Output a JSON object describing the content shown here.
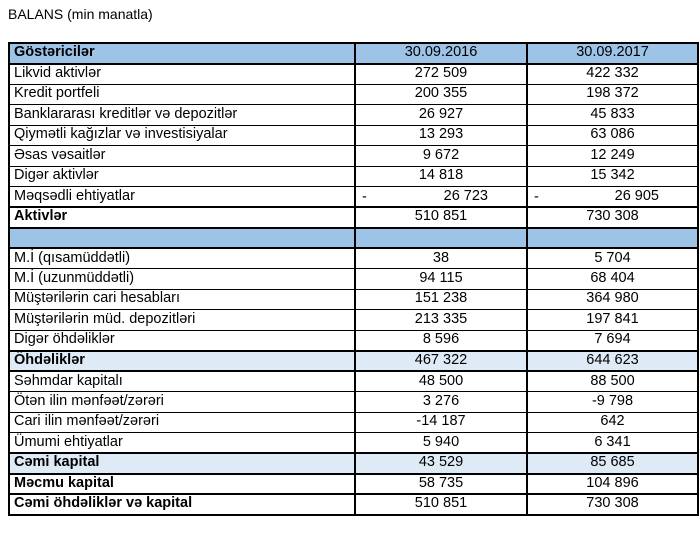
{
  "title": "BALANS (min manatla)",
  "colors": {
    "header_bg": "#9DC3E6",
    "highlight_bg": "#DEEAF6",
    "border": "#000000",
    "text": "#000000",
    "page_bg": "#FFFFFF"
  },
  "table": {
    "columns": [
      "Göstəricilər",
      "30.09.2016",
      "30.09.2017"
    ],
    "rows": [
      {
        "label": "Likvid aktivlər",
        "v2016": "272 509",
        "v2017": "422 332",
        "style": "normal"
      },
      {
        "label": "Kredit portfeli",
        "v2016": "200 355",
        "v2017": "198 372",
        "style": "normal"
      },
      {
        "label": "Banklararası kreditlər və depozitlər",
        "v2016": "26 927",
        "v2017": "45 833",
        "style": "normal"
      },
      {
        "label": "Qiymətli kağızlar və investisiyalar",
        "v2016": "13 293",
        "v2017": "63 086",
        "style": "normal"
      },
      {
        "label": "Əsas vəsaitlər",
        "v2016": "9 672",
        "v2017": "12 249",
        "style": "normal"
      },
      {
        "label": "Digər aktivlər",
        "v2016": "14 818",
        "v2017": "15 342",
        "style": "normal"
      },
      {
        "label": "Məqsədli ehtiyatlar",
        "v2016": "26 723",
        "v2017": "26 905",
        "style": "normal",
        "accounting_negative": true,
        "neg_sign": "-"
      },
      {
        "label": "Aktivlər",
        "v2016": "510 851",
        "v2017": "730 308",
        "style": "total"
      },
      {
        "label": "",
        "v2016": "",
        "v2017": "",
        "style": "spacer"
      },
      {
        "label": "M.İ (qısamüddətli)",
        "v2016": "38",
        "v2017": "5 704",
        "style": "normal"
      },
      {
        "label": "M.İ (uzunmüddətli)",
        "v2016": "94 115",
        "v2017": "68 404",
        "style": "normal"
      },
      {
        "label": "Müştərilərin cari hesabları",
        "v2016": "151 238",
        "v2017": "364 980",
        "style": "normal"
      },
      {
        "label": "Müştərilərin müd. depozitləri",
        "v2016": "213 335",
        "v2017": "197 841",
        "style": "normal"
      },
      {
        "label": "Digər öhdəliklər",
        "v2016": "8 596",
        "v2017": "7 694",
        "style": "normal"
      },
      {
        "label": "Öhdəliklər",
        "v2016": "467 322",
        "v2017": "644 623",
        "style": "total-highlight"
      },
      {
        "label": "Səhmdar kapitalı",
        "v2016": "48 500",
        "v2017": "88 500",
        "style": "normal"
      },
      {
        "label": "Ötən ilin mənfəət/zərəri",
        "v2016": "3 276",
        "v2017": "-9 798",
        "style": "normal"
      },
      {
        "label": "Cari ilin mənfəət/zərəri",
        "v2016": "-14 187",
        "v2017": "642",
        "style": "normal"
      },
      {
        "label": "Ümumi ehtiyatlar",
        "v2016": "5 940",
        "v2017": "6 341",
        "style": "normal"
      },
      {
        "label": "Cəmi kapital",
        "v2016": "43 529",
        "v2017": "85 685",
        "style": "total-highlight"
      },
      {
        "label": "Məcmu kapital",
        "v2016": "58 735",
        "v2017": "104 896",
        "style": "total"
      },
      {
        "label": "Cəmi öhdəliklər və kapital",
        "v2016": "510 851",
        "v2017": "730 308",
        "style": "total"
      }
    ]
  }
}
